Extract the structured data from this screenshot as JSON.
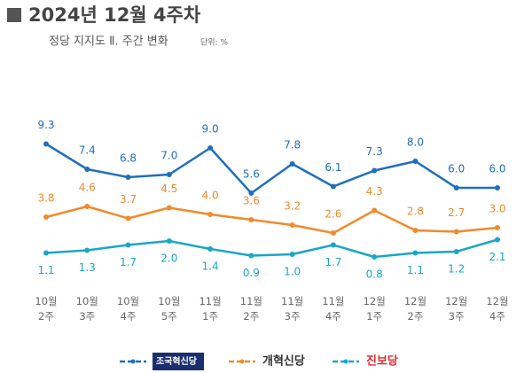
{
  "chart_data": {
    "type": "line",
    "title": "2024년 12월 4주차",
    "subtitle": "정당 지지도 Ⅱ. 주간 변화",
    "unit": "단위: %",
    "categories": [
      "10월\n2주",
      "10월\n3주",
      "10월\n4주",
      "10월\n5주",
      "11월\n1주",
      "11월\n2주",
      "11월\n3주",
      "11월\n4주",
      "12월\n1주",
      "12월\n2주",
      "12월\n3주",
      "12월\n4주"
    ],
    "series": [
      {
        "name": "조국혁신당",
        "color": "#1f6fc0",
        "values": [
          9.3,
          7.4,
          6.8,
          7.0,
          9.0,
          5.6,
          7.8,
          6.1,
          7.3,
          8.0,
          6.0,
          6.0
        ],
        "value_labels": [
          "9.3",
          "7.4",
          "6.8",
          "7.0",
          "9.0",
          "5.6",
          "7.8",
          "6.1",
          "7.3",
          "8.0",
          "6.0",
          "6.0"
        ]
      },
      {
        "name": "개혁신당",
        "color": "#f08a2c",
        "values": [
          3.8,
          4.6,
          3.7,
          4.5,
          4.0,
          3.6,
          3.2,
          2.6,
          4.3,
          2.8,
          2.7,
          3.0
        ],
        "value_labels": [
          "3.8",
          "4.6",
          "3.7",
          "4.5",
          "4.0",
          "3.6",
          "3.2",
          "2.6",
          "4.3",
          "2.8",
          "2.7",
          "3.0"
        ]
      },
      {
        "name": "진보당",
        "color": "#1aa6c8",
        "values": [
          1.1,
          1.3,
          1.7,
          2.0,
          1.4,
          0.9,
          1.0,
          1.7,
          0.8,
          1.1,
          1.2,
          2.1
        ],
        "value_labels": [
          "1.1",
          "1.3",
          "1.7",
          "2.0",
          "1.4",
          "0.9",
          "1.0",
          "1.7",
          "0.8",
          "1.1",
          "1.2",
          "2.1"
        ]
      }
    ]
  }
}
